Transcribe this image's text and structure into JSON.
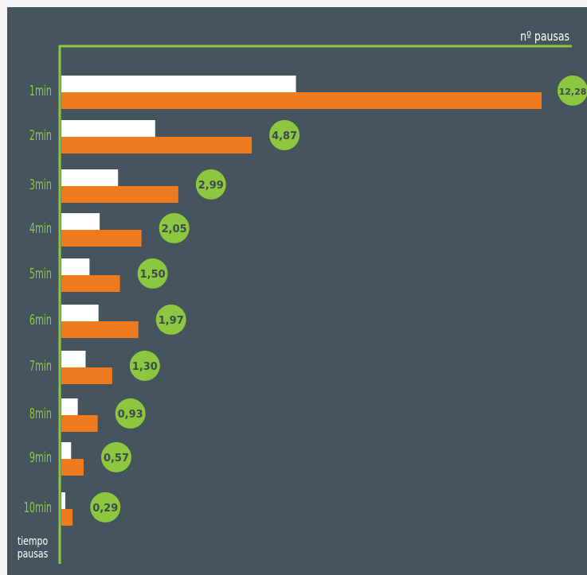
{
  "chart_data": {
    "type": "bar",
    "orientation": "horizontal",
    "title": "",
    "xlabel": "nº pausas",
    "ylabel": "tiempo pausas",
    "categories": [
      "1min",
      "2min",
      "3min",
      "4min",
      "5min",
      "6min",
      "7min",
      "8min",
      "9min",
      "10min"
    ],
    "series": [
      {
        "color": "#ffffff",
        "values": [
          6.0,
          2.4,
          1.45,
          0.98,
          0.72,
          0.95,
          0.62,
          0.42,
          0.25,
          0.1
        ]
      },
      {
        "color": "#f07a1e",
        "values": [
          12.28,
          4.87,
          2.99,
          2.05,
          1.5,
          1.97,
          1.3,
          0.93,
          0.57,
          0.29
        ]
      }
    ],
    "data_labels": [
      "12,28",
      "4,87",
      "2,99",
      "2,05",
      "1,50",
      "1,97",
      "1,30",
      "0,93",
      "0,57",
      "0,29"
    ],
    "grid": false,
    "colors": {
      "background": "#46545d",
      "axis": "#8dc63f",
      "label_bubble": "#8dc63f",
      "label_text": "#3e4a52",
      "tick_text": "#8dc63f",
      "axis_title": "#ffffff"
    }
  }
}
